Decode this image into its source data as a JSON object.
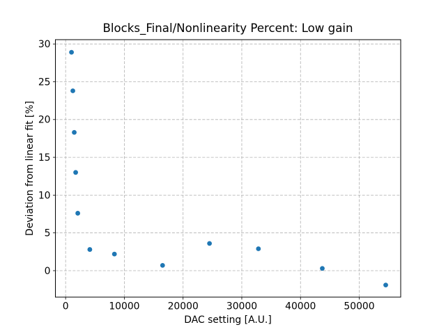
{
  "figure": {
    "background": "#ffffff",
    "spine_color": "#000000",
    "text_color": "#000000"
  },
  "chart_data": {
    "type": "scatter",
    "title": "Blocks_Final/Nonlinearity Percent: Low gain",
    "xlabel": "DAC setting [A.U.]",
    "ylabel": "Deviation from linear fit [%]",
    "legend": null,
    "grid": true,
    "grid_style": "dashed",
    "grid_color": "#b0b0b0",
    "marker_color": "#1f77b4",
    "marker_shape": "circle",
    "xlim": [
      -1740,
      57060
    ],
    "ylim": [
      -3.5,
      30.57
    ],
    "x_ticks": [
      0,
      10000,
      20000,
      30000,
      40000,
      50000
    ],
    "x_tick_labels": [
      "0",
      "10000",
      "20000",
      "30000",
      "40000",
      "50000"
    ],
    "y_ticks": [
      0,
      5,
      10,
      15,
      20,
      25,
      30
    ],
    "y_tick_labels": [
      "0",
      "5",
      "10",
      "15",
      "20",
      "25",
      "30"
    ],
    "points": [
      {
        "x": 1000,
        "y": 28.9
      },
      {
        "x": 1230,
        "y": 23.8
      },
      {
        "x": 1470,
        "y": 18.3
      },
      {
        "x": 1710,
        "y": 13.0
      },
      {
        "x": 2070,
        "y": 7.6
      },
      {
        "x": 4120,
        "y": 2.8
      },
      {
        "x": 8310,
        "y": 2.2
      },
      {
        "x": 16510,
        "y": 0.7
      },
      {
        "x": 24500,
        "y": 3.6
      },
      {
        "x": 32830,
        "y": 2.9
      },
      {
        "x": 43710,
        "y": 0.3
      },
      {
        "x": 54510,
        "y": -1.9
      }
    ]
  }
}
